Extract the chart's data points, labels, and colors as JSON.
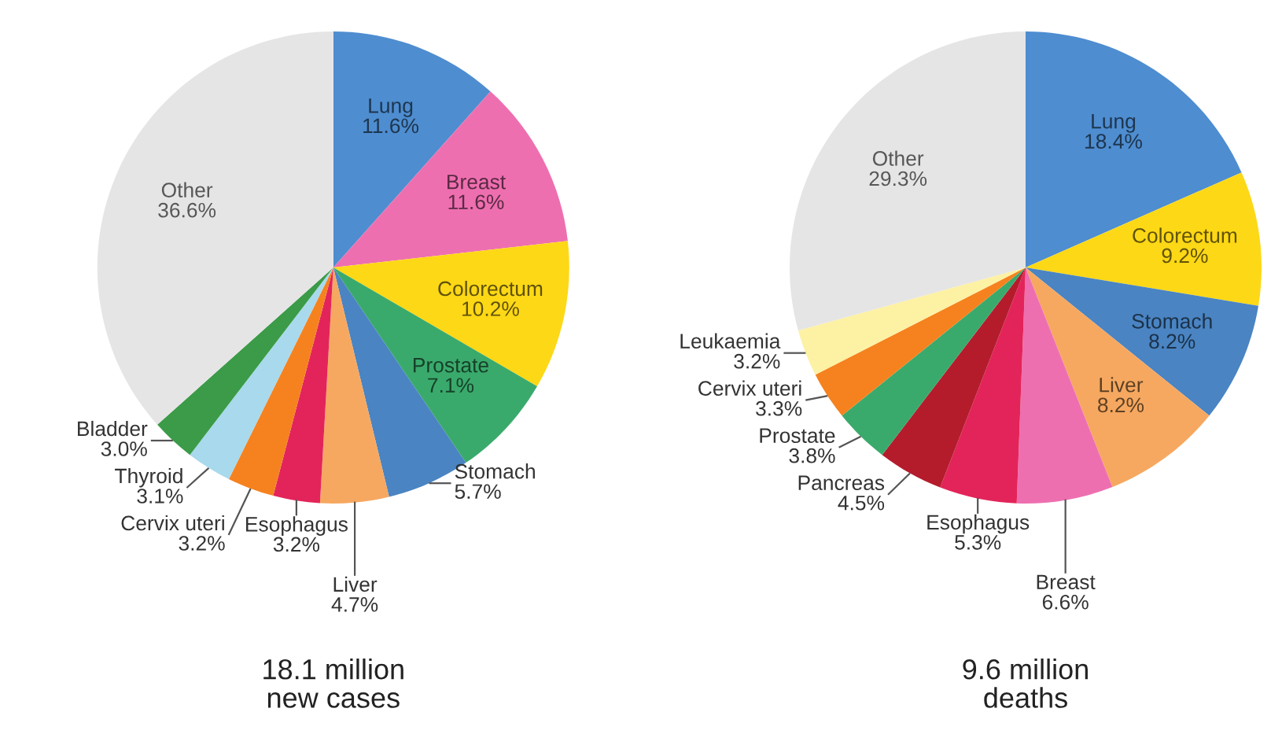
{
  "chart_data": [
    {
      "type": "pie",
      "title": "18.1 million\nnew cases",
      "categories": [
        "Lung",
        "Breast",
        "Colorectum",
        "Prostate",
        "Stomach",
        "Liver",
        "Esophagus",
        "Cervix uteri",
        "Thyroid",
        "Bladder",
        "Other"
      ],
      "values": [
        11.6,
        11.6,
        10.2,
        7.1,
        5.7,
        4.7,
        3.2,
        3.2,
        3.1,
        3.0,
        36.6
      ],
      "value_labels": [
        "11.6%",
        "11.6%",
        "10.2%",
        "7.1%",
        "5.7%",
        "4.7%",
        "3.2%",
        "3.2%",
        "3.1%",
        "3.0%",
        "36.6%"
      ],
      "colors": [
        "#4e8dd0",
        "#ee6fb0",
        "#fdd816",
        "#3aaa6c",
        "#4a84c2",
        "#f6a860",
        "#e3245a",
        "#f6821f",
        "#a9d9ec",
        "#3b9b48",
        "#e5e5e5"
      ]
    },
    {
      "type": "pie",
      "title": "9.6 million\ndeaths",
      "categories": [
        "Lung",
        "Colorectum",
        "Stomach",
        "Liver",
        "Breast",
        "Esophagus",
        "Pancreas",
        "Prostate",
        "Cervix uteri",
        "Leukaemia",
        "Other"
      ],
      "values": [
        18.4,
        9.2,
        8.2,
        8.2,
        6.6,
        5.3,
        4.5,
        3.8,
        3.3,
        3.2,
        29.3
      ],
      "value_labels": [
        "18.4%",
        "9.2%",
        "8.2%",
        "8.2%",
        "6.6%",
        "5.3%",
        "4.5%",
        "3.8%",
        "3.3%",
        "3.2%",
        "29.3%"
      ],
      "colors": [
        "#4e8dd0",
        "#fdd816",
        "#4a84c2",
        "#f6a860",
        "#ee6fb0",
        "#e3245a",
        "#b41c2c",
        "#3aaa6c",
        "#f6821f",
        "#fdf1a4",
        "#e5e5e5"
      ]
    }
  ]
}
